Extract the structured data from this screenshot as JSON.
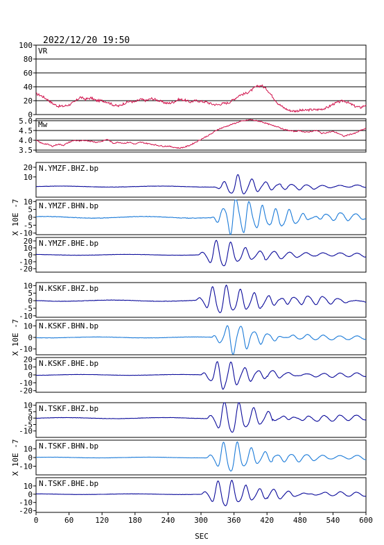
{
  "header": {
    "timestamp": "2022/12/20 19:50"
  },
  "colors": {
    "frame": "#000000",
    "grid": "#000000",
    "summary_line": "#d0104a",
    "trace_dark": "#0a0a9a",
    "trace_light": "#1a7ad8",
    "background": "#ffffff"
  },
  "chart_data": [
    {
      "type": "line",
      "label": "VR",
      "xlim": [
        0,
        600
      ],
      "ylim": [
        0,
        100
      ],
      "yticks": [
        0,
        20,
        40,
        60,
        80,
        100
      ],
      "grid": true,
      "series": [
        {
          "x": [
            0,
            10,
            20,
            30,
            40,
            50,
            60,
            70,
            80,
            90,
            100,
            110,
            120,
            130,
            140,
            150,
            160,
            170,
            180,
            190,
            200,
            210,
            220,
            230,
            240,
            250,
            260,
            270,
            280,
            290,
            300,
            310,
            320,
            330,
            340,
            350,
            360,
            370,
            380,
            390,
            400,
            410,
            420,
            430,
            440,
            450,
            460,
            470,
            480,
            490,
            500,
            510,
            520,
            530,
            540,
            550,
            560,
            570,
            580,
            590,
            600
          ],
          "y": [
            30,
            27,
            22,
            16,
            12,
            12,
            14,
            18,
            25,
            22,
            24,
            20,
            20,
            18,
            14,
            12,
            16,
            19,
            18,
            22,
            20,
            23,
            21,
            18,
            16,
            18,
            22,
            21,
            18,
            20,
            19,
            18,
            15,
            14,
            16,
            17,
            22,
            28,
            30,
            34,
            40,
            42,
            36,
            26,
            16,
            10,
            6,
            5,
            6,
            6,
            7,
            7,
            8,
            10,
            15,
            18,
            20,
            16,
            12,
            10,
            14
          ]
        }
      ]
    },
    {
      "type": "line",
      "label": "Mw",
      "xlim": [
        0,
        600
      ],
      "ylim": [
        3.4,
        5.1
      ],
      "yticks": [
        3.5,
        4.0,
        4.5,
        5.0
      ],
      "ytick_labels": [
        "3.5",
        "4.0",
        "4.5",
        "5.0"
      ],
      "grid": true,
      "series": [
        {
          "x": [
            0,
            10,
            20,
            30,
            40,
            50,
            60,
            70,
            80,
            90,
            100,
            110,
            120,
            130,
            140,
            150,
            160,
            170,
            180,
            190,
            200,
            210,
            220,
            230,
            240,
            250,
            260,
            270,
            280,
            290,
            300,
            310,
            320,
            330,
            340,
            350,
            360,
            370,
            380,
            390,
            400,
            410,
            420,
            430,
            440,
            450,
            460,
            470,
            480,
            490,
            500,
            510,
            520,
            530,
            540,
            550,
            560,
            570,
            580,
            590,
            600
          ],
          "y": [
            4.0,
            3.85,
            3.8,
            3.7,
            3.8,
            3.75,
            3.9,
            4.0,
            3.95,
            4.0,
            3.95,
            3.9,
            3.95,
            4.05,
            3.85,
            3.9,
            3.85,
            3.9,
            3.8,
            3.9,
            3.85,
            3.8,
            3.75,
            3.7,
            3.7,
            3.65,
            3.6,
            3.65,
            3.75,
            3.9,
            4.05,
            4.2,
            4.35,
            4.55,
            4.65,
            4.75,
            4.85,
            4.95,
            5.0,
            5.05,
            5.0,
            4.95,
            4.85,
            4.75,
            4.7,
            4.55,
            4.5,
            4.45,
            4.5,
            4.4,
            4.45,
            4.5,
            4.35,
            4.4,
            4.45,
            4.35,
            4.2,
            4.3,
            4.35,
            4.5,
            4.6
          ]
        }
      ]
    }
  ],
  "seismograms": {
    "ylabel": "X 10E -7",
    "xlabel": "SEC",
    "xlim": [
      0,
      600
    ],
    "xticks": [
      0,
      60,
      120,
      180,
      240,
      300,
      360,
      420,
      480,
      540,
      600
    ],
    "traces": [
      {
        "label": "N.YMZF.BHZ.bp",
        "color": "#0a0a9a",
        "ylim": [
          -11,
          25
        ],
        "yticks": [
          10,
          20
        ],
        "onset": 325,
        "amp": 11,
        "freq": 0.04,
        "decay": 0.018,
        "pre_noise": 0.5,
        "phase": 3.6
      },
      {
        "label": "N.YMZF.BHN.bp",
        "color": "#1a7ad8",
        "ylim": [
          -11,
          11
        ],
        "yticks": [
          -10,
          -5,
          0,
          5,
          10
        ],
        "onset": 320,
        "amp": 12,
        "freq": 0.042,
        "decay": 0.012,
        "pre_noise": 0.5,
        "phase": 2.4
      },
      {
        "label": "N.YMZF.BHE.bp",
        "color": "#0a0a9a",
        "ylim": [
          -25,
          25
        ],
        "yticks": [
          -20,
          -10,
          0,
          10,
          20
        ],
        "onset": 295,
        "amp": 22,
        "freq": 0.038,
        "decay": 0.02,
        "pre_noise": 0.6,
        "phase": 0.0
      },
      {
        "label": "N.KSKF.BHZ.bp",
        "color": "#0a0a9a",
        "ylim": [
          -11,
          12
        ],
        "yticks": [
          -10,
          -5,
          0,
          5,
          10
        ],
        "onset": 290,
        "amp": 10,
        "freq": 0.04,
        "decay": 0.01,
        "pre_noise": 0.4,
        "phase": 0.0
      },
      {
        "label": "N.KSKF.BHN.bp",
        "color": "#1a7ad8",
        "ylim": [
          -15,
          15
        ],
        "yticks": [
          -10,
          0,
          10
        ],
        "onset": 320,
        "amp": 14,
        "freq": 0.04,
        "decay": 0.022,
        "pre_noise": 0.4,
        "phase": 1.2
      },
      {
        "label": "N.KSKF.BHE.bp",
        "color": "#0a0a9a",
        "ylim": [
          -22,
          22
        ],
        "yticks": [
          -20,
          -10,
          0,
          10,
          20
        ],
        "onset": 300,
        "amp": 20,
        "freq": 0.04,
        "decay": 0.02,
        "pre_noise": 0.5,
        "phase": 0.6
      },
      {
        "label": "N.TSKF.BHZ.bp",
        "color": "#0a0a9a",
        "ylim": [
          -15,
          12
        ],
        "yticks": [
          -10,
          -5,
          0,
          5,
          10
        ],
        "onset": 310,
        "amp": 14,
        "freq": 0.038,
        "decay": 0.016,
        "pre_noise": 0.4,
        "phase": 0.0
      },
      {
        "label": "N.TSKF.BHN.bp",
        "color": "#1a7ad8",
        "ylim": [
          -20,
          20
        ],
        "yticks": [
          -10,
          0,
          10
        ],
        "onset": 310,
        "amp": 20,
        "freq": 0.04,
        "decay": 0.018,
        "pre_noise": 0.4,
        "phase": 0.0
      },
      {
        "label": "N.TSKF.BHE.bp",
        "color": "#0a0a9a",
        "ylim": [
          -22,
          20
        ],
        "yticks": [
          -20,
          -10,
          0,
          10
        ],
        "onset": 300,
        "amp": 18,
        "freq": 0.04,
        "decay": 0.016,
        "pre_noise": 0.4,
        "phase": 0.0
      }
    ]
  }
}
